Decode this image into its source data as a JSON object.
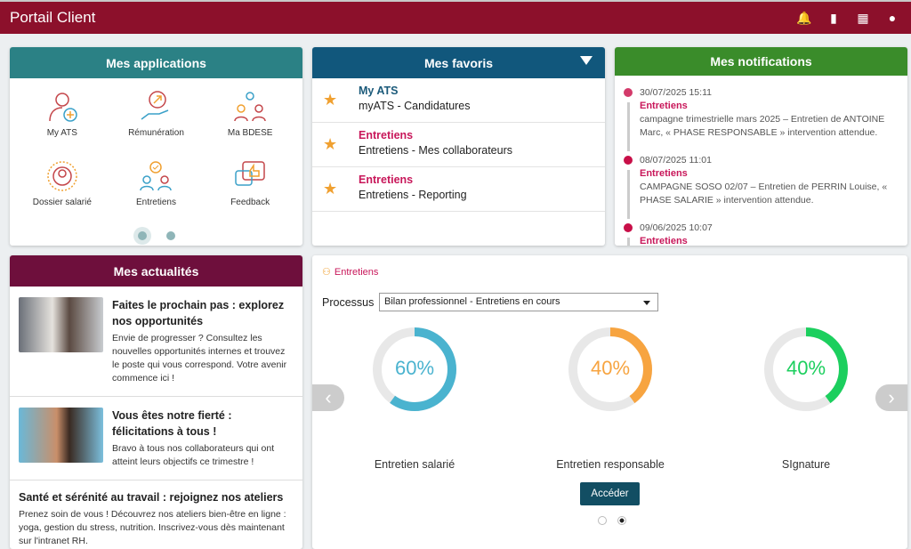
{
  "header": {
    "title": "Portail Client",
    "icons": [
      "bell-icon",
      "book-icon",
      "apps-grid-icon",
      "account-icon"
    ]
  },
  "applications": {
    "title": "Mes applications",
    "items": [
      {
        "label": "My ATS"
      },
      {
        "label": "Rémunération"
      },
      {
        "label": "Ma BDESE"
      },
      {
        "label": "Dossier salarié"
      },
      {
        "label": "Entretiens"
      },
      {
        "label": "Feedback"
      }
    ],
    "pages": 2,
    "current_page": 1
  },
  "favoris": {
    "title": "Mes favoris",
    "items": [
      {
        "title": "My ATS",
        "subtitle": "myATS - Candidatures",
        "color": "#1b5a7a"
      },
      {
        "title": "Entretiens",
        "subtitle": "Entretiens - Mes collaborateurs",
        "color": "#c8175a"
      },
      {
        "title": "Entretiens",
        "subtitle": "Entretiens - Reporting",
        "color": "#c8175a"
      }
    ]
  },
  "notifications": {
    "title": "Mes notifications",
    "items": [
      {
        "date": "30/07/2025 15:11",
        "category": "Entretiens",
        "message": "campagne trimestrielle mars 2025 – Entretien de ANTOINE Marc, « PHASE RESPONSABLE » intervention attendue."
      },
      {
        "date": "08/07/2025 11:01",
        "category": "Entretiens",
        "message": "CAMPAGNE SOSO 02/07 – Entretien de PERRIN Louise, « PHASE SALARIE » intervention attendue."
      },
      {
        "date": "09/06/2025 10:07",
        "category": "Entretiens",
        "message": ""
      }
    ]
  },
  "actualites": {
    "title": "Mes actualités",
    "items": [
      {
        "title": "Faites le prochain pas : explorez nos opportunités",
        "text": "Envie de progresser ? Consultez les nouvelles opportunités internes et trouvez le poste qui vous correspond. Votre avenir commence ici !"
      },
      {
        "title": "Vous êtes notre fierté : félicitations à tous !",
        "text": "Bravo à tous nos collaborateurs qui ont atteint leurs objectifs ce trimestre !"
      },
      {
        "title": "Santé et sérénité au travail : rejoignez nos ateliers",
        "text": "Prenez soin de vous ! Découvrez nos ateliers bien-être en ligne : yoga, gestion du stress, nutrition. Inscrivez-vous dès maintenant sur l'intranet RH."
      }
    ]
  },
  "entretiens": {
    "title": "Entretiens",
    "process_label": "Processus",
    "process_value": "Bilan professionnel - Entretiens en cours",
    "gauges": [
      {
        "label": "Entretien salarié",
        "value": 60,
        "text": "60%",
        "color": "#4ab3cf"
      },
      {
        "label": "Entretien responsable",
        "value": 40,
        "text": "40%",
        "color": "#f7a440"
      },
      {
        "label": "SIgnature",
        "value": 40,
        "text": "40%",
        "color": "#1ccf5e"
      }
    ],
    "button": "Accéder",
    "pages": 2,
    "current_page": 2
  }
}
